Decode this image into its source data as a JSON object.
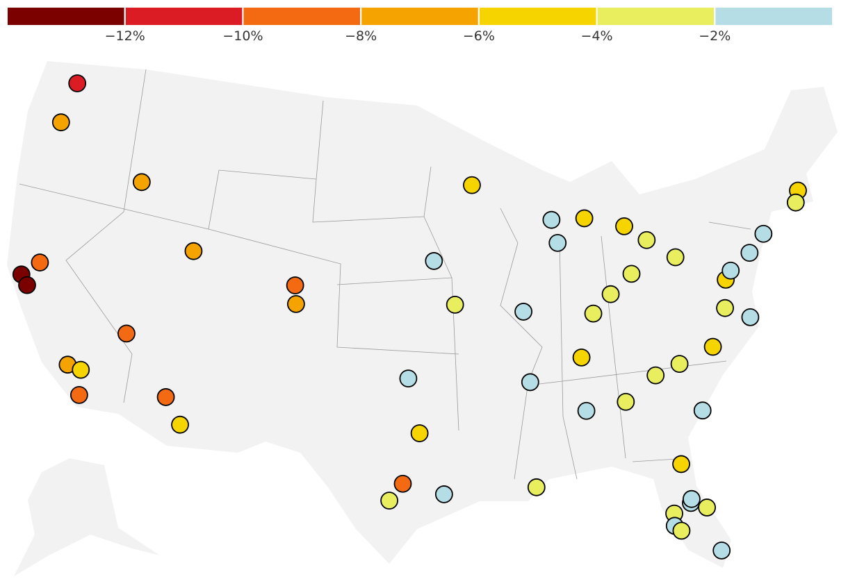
{
  "legend": {
    "colors": [
      "#7b0000",
      "#dc1c24",
      "#f46a12",
      "#f5a300",
      "#f5d400",
      "#e9ee5e",
      "#b5dde5"
    ],
    "ticks": [
      {
        "value": -12,
        "label": "−12%"
      },
      {
        "value": -10,
        "label": "−10%"
      },
      {
        "value": -8,
        "label": "−8%"
      },
      {
        "value": -6,
        "label": "−6%"
      },
      {
        "value": -4,
        "label": "−4%"
      },
      {
        "value": -2,
        "label": "−2%"
      }
    ]
  },
  "points": [
    {
      "lon": -122.33,
      "lat": 47.61,
      "color": "#dc1c24"
    },
    {
      "lon": -122.68,
      "lat": 45.52,
      "color": "#f5a300"
    },
    {
      "lon": -116.2,
      "lat": 43.62,
      "color": "#f5a300"
    },
    {
      "lon": -111.89,
      "lat": 40.76,
      "color": "#f5a300"
    },
    {
      "lon": -121.49,
      "lat": 38.58,
      "color": "#f46a12"
    },
    {
      "lon": -122.42,
      "lat": 37.77,
      "color": "#7b0000"
    },
    {
      "lon": -121.89,
      "lat": 37.34,
      "color": "#7b0000"
    },
    {
      "lon": -115.14,
      "lat": 36.17,
      "color": "#f46a12"
    },
    {
      "lon": -118.24,
      "lat": 34.05,
      "color": "#f5a300"
    },
    {
      "lon": -117.4,
      "lat": 33.95,
      "color": "#f5d400"
    },
    {
      "lon": -117.16,
      "lat": 32.72,
      "color": "#f46a12"
    },
    {
      "lon": -112.07,
      "lat": 33.45,
      "color": "#f46a12"
    },
    {
      "lon": -110.97,
      "lat": 32.22,
      "color": "#f5d400"
    },
    {
      "lon": -104.99,
      "lat": 39.74,
      "color": "#f46a12"
    },
    {
      "lon": -104.82,
      "lat": 38.83,
      "color": "#f5a300"
    },
    {
      "lon": -93.27,
      "lat": 44.98,
      "color": "#f5d400"
    },
    {
      "lon": -95.94,
      "lat": 41.26,
      "color": "#b5dde5"
    },
    {
      "lon": -94.58,
      "lat": 39.1,
      "color": "#e9ee5e"
    },
    {
      "lon": -90.2,
      "lat": 38.63,
      "color": "#b5dde5"
    },
    {
      "lon": -87.91,
      "lat": 43.04,
      "color": "#b5dde5"
    },
    {
      "lon": -87.63,
      "lat": 41.88,
      "color": "#b5dde5"
    },
    {
      "lon": -85.67,
      "lat": 42.96,
      "color": "#f5d400"
    },
    {
      "lon": -83.05,
      "lat": 42.33,
      "color": "#f5d400"
    },
    {
      "lon": -81.69,
      "lat": 41.5,
      "color": "#e9ee5e"
    },
    {
      "lon": -79.99,
      "lat": 40.44,
      "color": "#e9ee5e"
    },
    {
      "lon": -83.0,
      "lat": 39.96,
      "color": "#e9ee5e"
    },
    {
      "lon": -84.51,
      "lat": 39.1,
      "color": "#e9ee5e"
    },
    {
      "lon": -85.76,
      "lat": 38.25,
      "color": "#e9ee5e"
    },
    {
      "lon": -86.78,
      "lat": 36.16,
      "color": "#f5d400"
    },
    {
      "lon": -90.05,
      "lat": 35.15,
      "color": "#b5dde5"
    },
    {
      "lon": -97.52,
      "lat": 35.47,
      "color": "#b5dde5"
    },
    {
      "lon": -96.8,
      "lat": 32.78,
      "color": "#f5d400"
    },
    {
      "lon": -97.74,
      "lat": 30.27,
      "color": "#f46a12"
    },
    {
      "lon": -98.49,
      "lat": 29.42,
      "color": "#e9ee5e"
    },
    {
      "lon": -95.37,
      "lat": 29.76,
      "color": "#b5dde5"
    },
    {
      "lon": -90.07,
      "lat": 29.95,
      "color": "#e9ee5e"
    },
    {
      "lon": -86.8,
      "lat": 33.52,
      "color": "#b5dde5"
    },
    {
      "lon": -84.39,
      "lat": 33.75,
      "color": "#e9ee5e"
    },
    {
      "lon": -82.39,
      "lat": 34.85,
      "color": "#e9ee5e"
    },
    {
      "lon": -80.84,
      "lat": 35.23,
      "color": "#e9ee5e"
    },
    {
      "lon": -78.64,
      "lat": 35.78,
      "color": "#f5d400"
    },
    {
      "lon": -79.93,
      "lat": 32.78,
      "color": "#b5dde5"
    },
    {
      "lon": -81.66,
      "lat": 30.33,
      "color": "#f5d400"
    },
    {
      "lon": -81.45,
      "lat": 28.35,
      "color": "#b5dde5"
    },
    {
      "lon": -81.38,
      "lat": 28.54,
      "color": "#b5dde5"
    },
    {
      "lon": -80.6,
      "lat": 28.0,
      "color": "#e9ee5e"
    },
    {
      "lon": -82.46,
      "lat": 27.95,
      "color": "#e9ee5e"
    },
    {
      "lon": -82.53,
      "lat": 27.34,
      "color": "#b5dde5"
    },
    {
      "lon": -82.2,
      "lat": 27.05,
      "color": "#e9ee5e"
    },
    {
      "lon": -80.19,
      "lat": 25.76,
      "color": "#b5dde5"
    },
    {
      "lon": -76.0,
      "lat": 36.85,
      "color": "#b5dde5"
    },
    {
      "lon": -77.44,
      "lat": 37.54,
      "color": "#e9ee5e"
    },
    {
      "lon": -77.04,
      "lat": 38.9,
      "color": "#f5d400"
    },
    {
      "lon": -76.61,
      "lat": 39.29,
      "color": "#b5dde5"
    },
    {
      "lon": -75.17,
      "lat": 39.95,
      "color": "#b5dde5"
    },
    {
      "lon": -74.0,
      "lat": 40.71,
      "color": "#b5dde5"
    },
    {
      "lon": -71.06,
      "lat": 42.36,
      "color": "#f5d400"
    },
    {
      "lon": -71.41,
      "lat": 41.82,
      "color": "#e9ee5e"
    }
  ]
}
